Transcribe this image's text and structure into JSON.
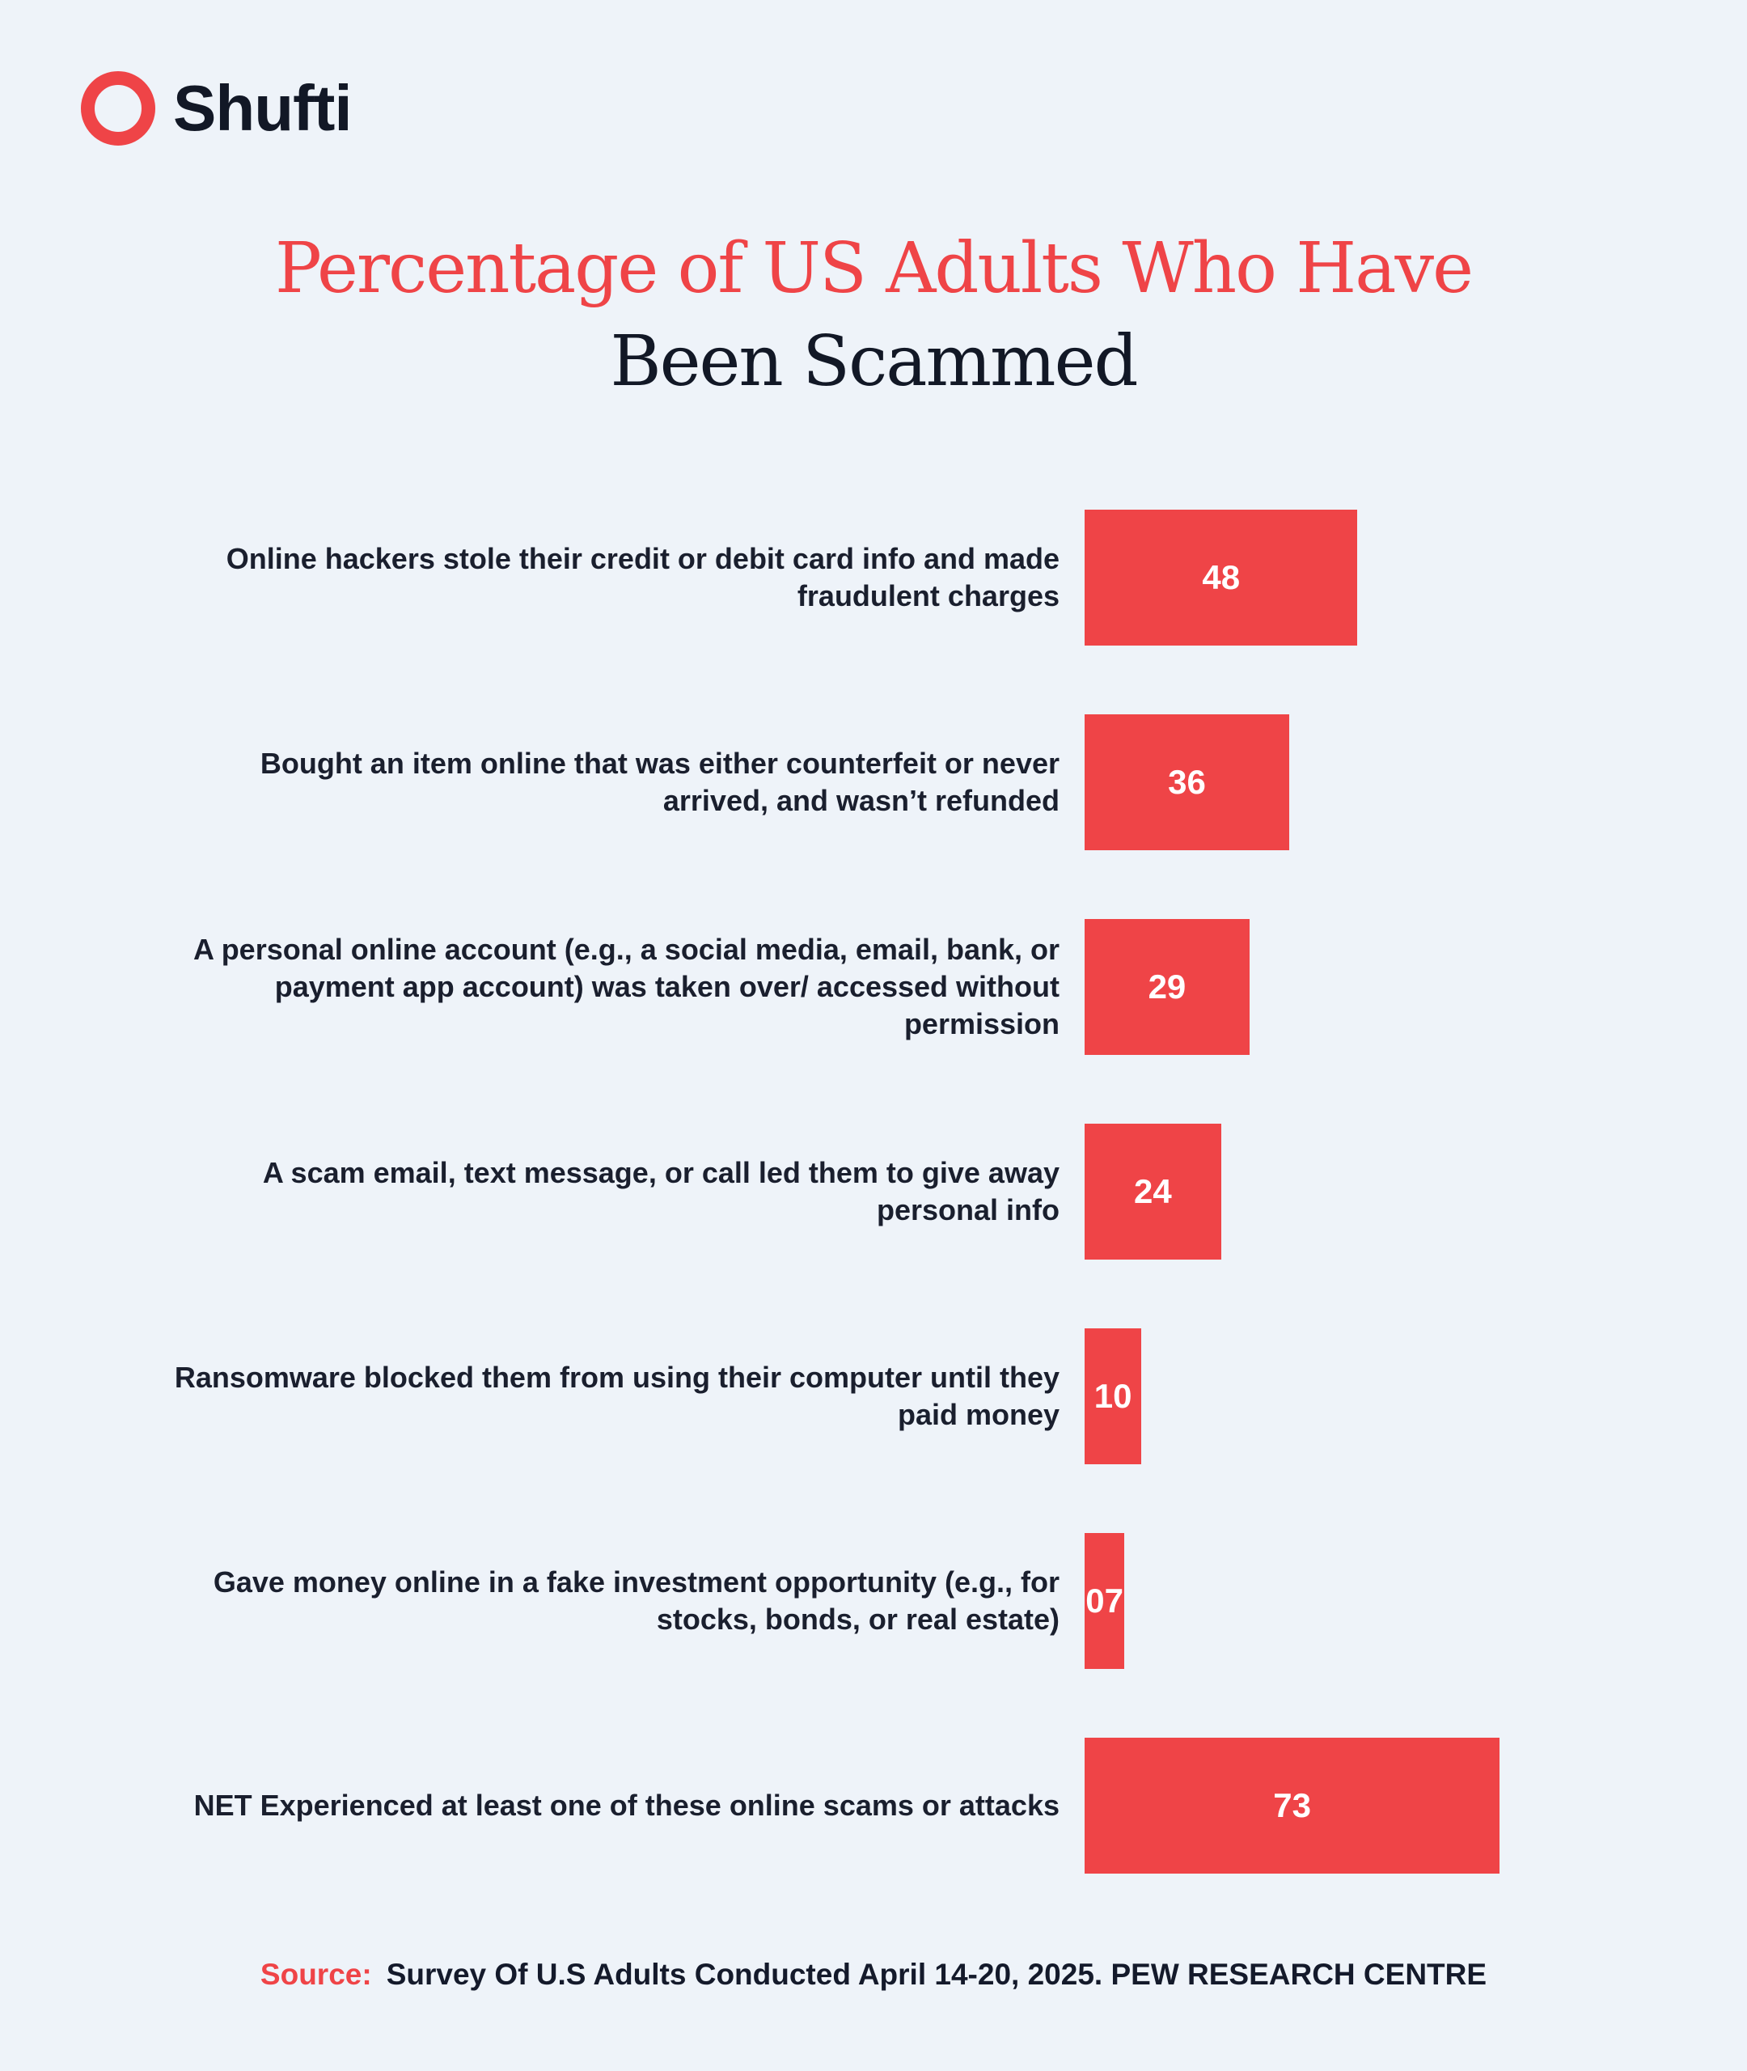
{
  "brand": {
    "name": "Shufti",
    "color": "#ef4447"
  },
  "chart_data": {
    "type": "bar",
    "orientation": "horizontal",
    "title_line1": "Percentage of US Adults Who Have",
    "title_line2": "Been Scammed",
    "categories": [
      "Online hackers stole their credit or debit card info and made fraudulent charges",
      "Bought an item online that was either counterfeit or never arrived, and wasn’t refunded",
      "A personal online account (e.g., a social media, email, bank, or payment app account) was taken over/ accessed without permission",
      "A scam email, text message, or call led them to give away personal info",
      "Ransomware blocked them from using their computer until they paid money",
      "Gave money online in a fake investment opportunity (e.g., for stocks, bonds, or real estate)",
      "NET Experienced at least one of these online scams or attacks"
    ],
    "values": [
      48,
      36,
      29,
      24,
      10,
      7,
      73
    ],
    "value_labels": [
      "48",
      "36",
      "29",
      "24",
      "10",
      "07",
      "73"
    ],
    "xlim": [
      0,
      100
    ],
    "grid": false,
    "bar_color": "#ef4447"
  },
  "source": {
    "label": "Source:",
    "text": "Survey Of U.S Adults Conducted April 14-20, 2025. PEW RESEARCH CENTRE"
  }
}
